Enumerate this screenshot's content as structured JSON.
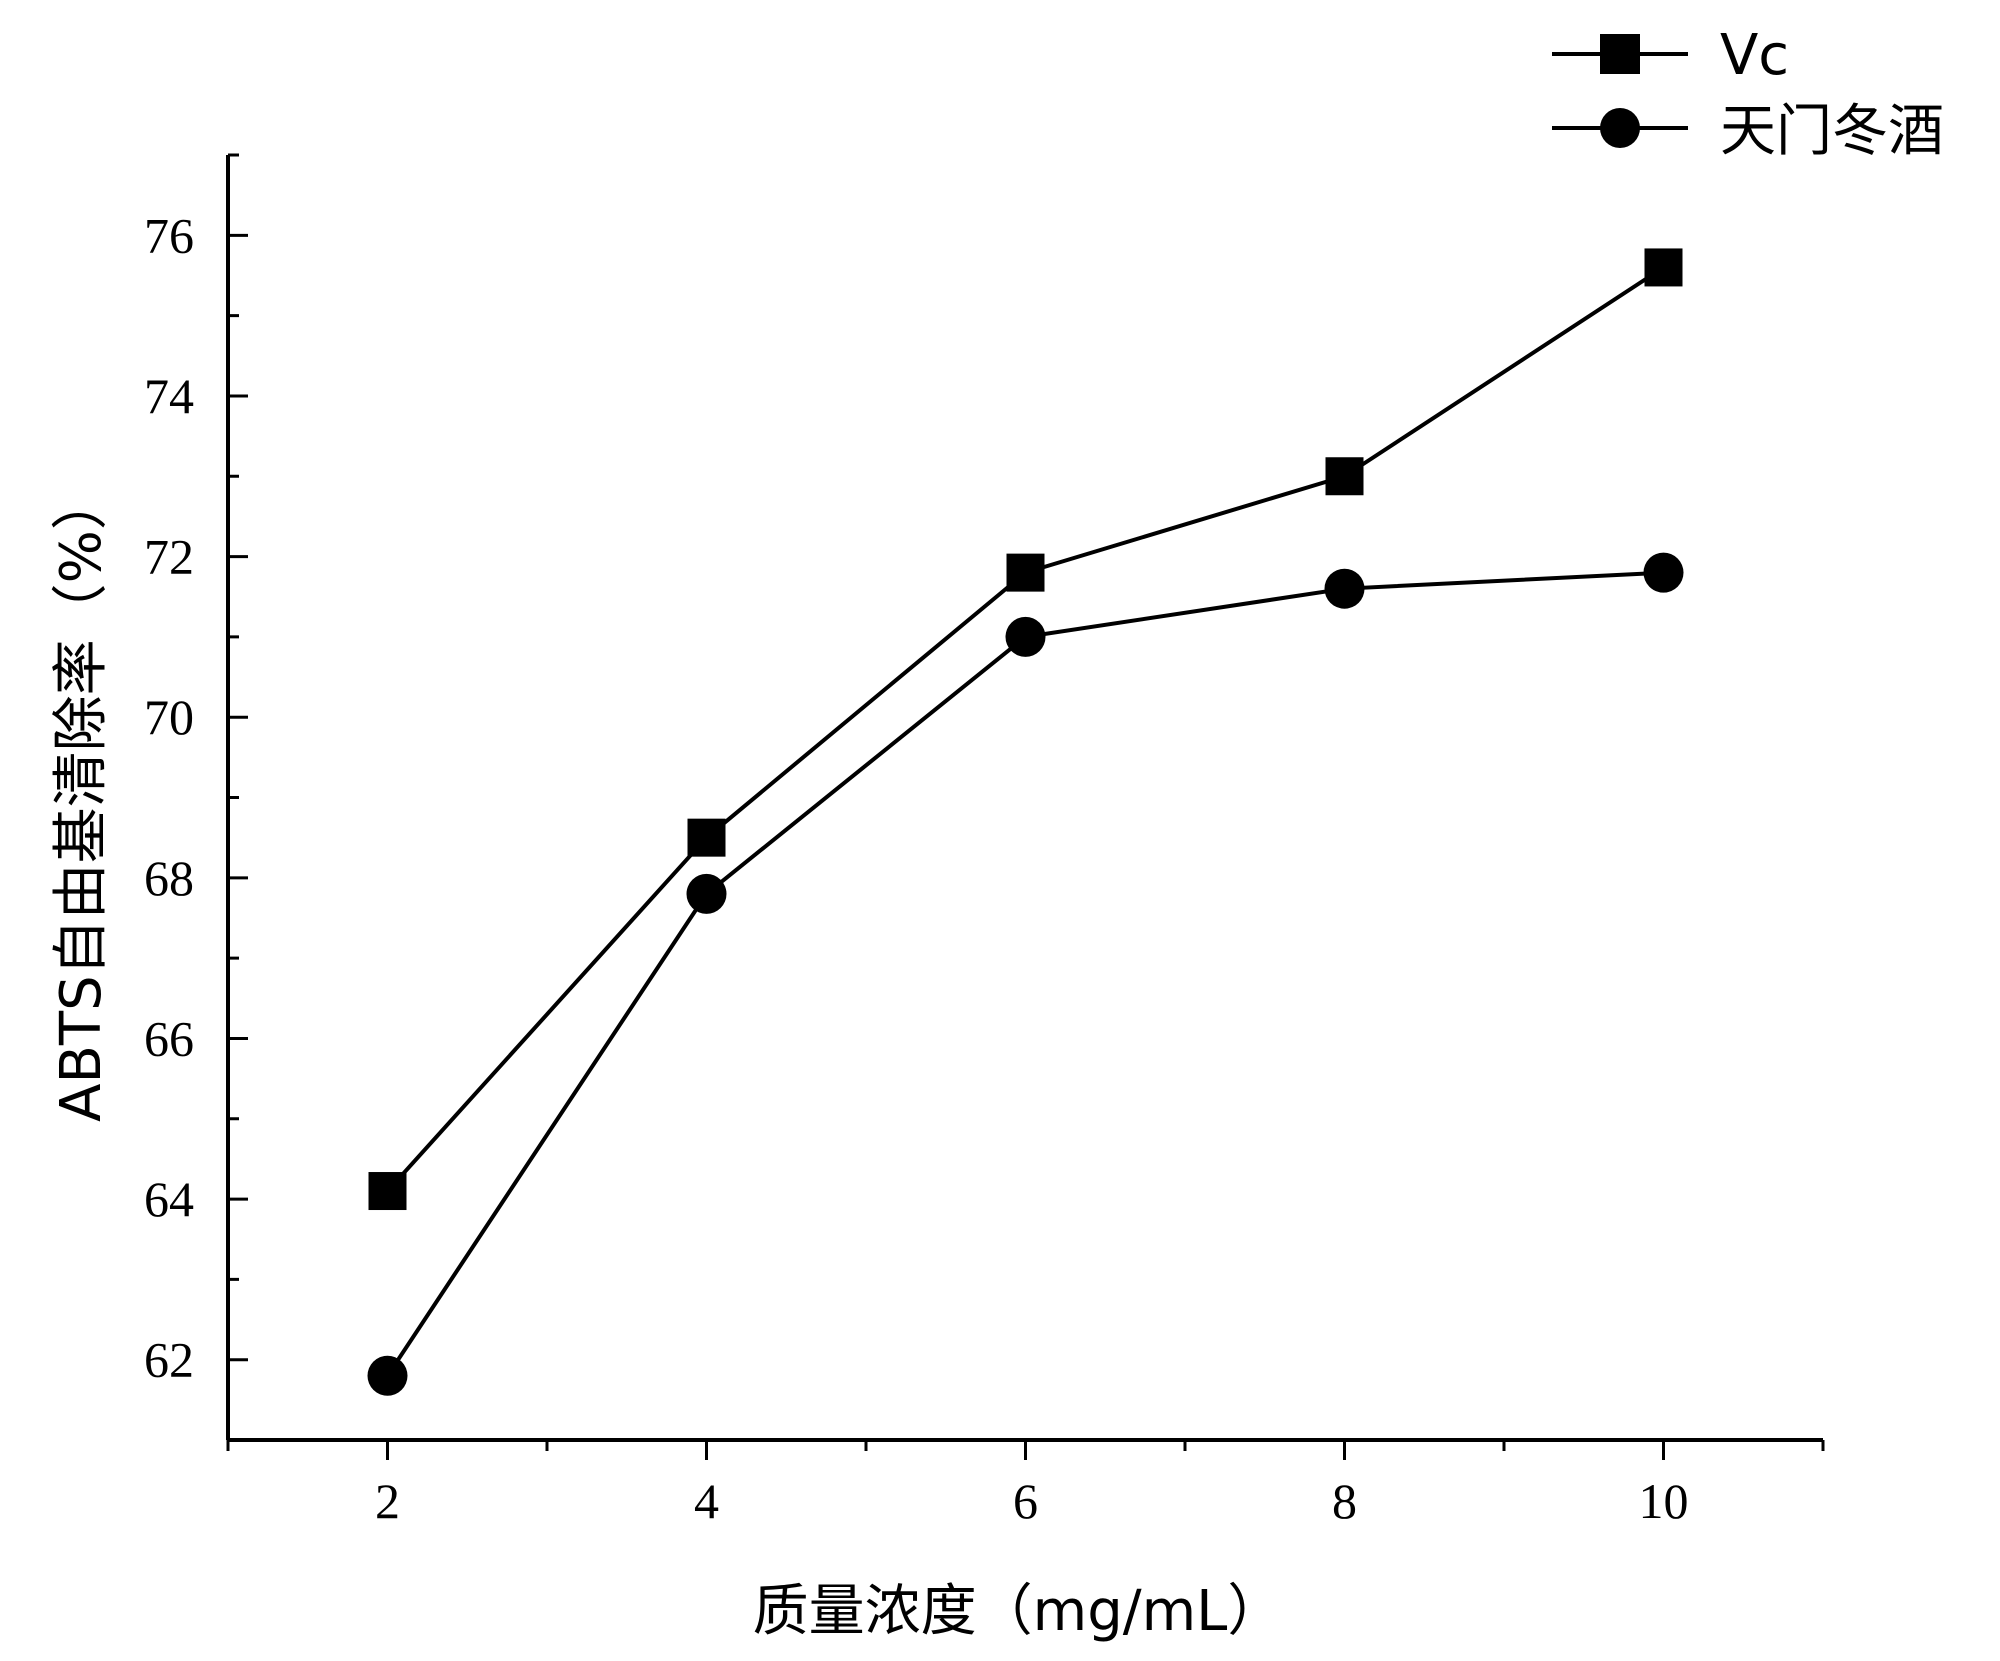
{
  "chart_data": {
    "type": "line",
    "title": "",
    "xlabel": "质量浓度（mg/mL）",
    "ylabel": "ABTS自由基清除率（%）",
    "x": [
      2,
      4,
      6,
      8,
      10
    ],
    "xlim": [
      1,
      11
    ],
    "ylim": [
      61,
      77
    ],
    "xticks": [
      2,
      4,
      6,
      8,
      10
    ],
    "yticks": [
      62,
      64,
      66,
      68,
      70,
      72,
      74,
      76
    ],
    "legend_position": "top-right",
    "series": [
      {
        "name": "Vc",
        "marker": "square",
        "values": [
          64.1,
          68.5,
          71.8,
          73.0,
          75.6
        ]
      },
      {
        "name": "天门冬酒",
        "marker": "circle",
        "values": [
          61.8,
          67.8,
          71.0,
          71.6,
          71.8
        ]
      }
    ]
  }
}
